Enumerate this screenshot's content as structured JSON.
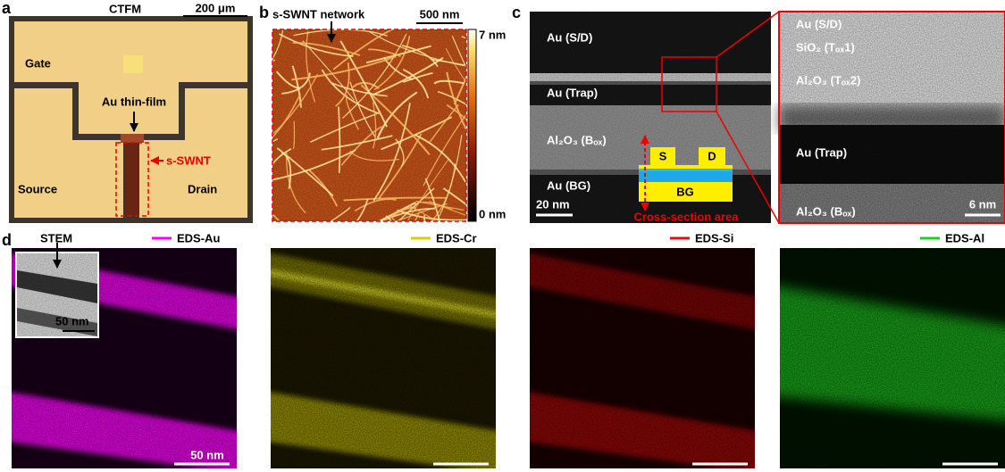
{
  "panels": {
    "a": {
      "label": "a",
      "title": "CTFM",
      "scale_bar": "200 μm",
      "gate": "Gate",
      "film": "Au thin-film",
      "channel": "s-SWNT",
      "source": "Source",
      "drain": "Drain"
    },
    "b": {
      "label": "b",
      "title": "s-SWNT network",
      "scale_bar": "500 nm",
      "colorbar_max": "7 nm",
      "colorbar_min": "0 nm"
    },
    "c": {
      "label": "c",
      "layers": [
        "Au (S/D)",
        "Au (Trap)",
        "Al₂O₃ (Bₒₓ)",
        "Au (BG)"
      ],
      "scale_bar": "20 nm",
      "schematic": {
        "source": "S",
        "drain": "D",
        "gate": "BG",
        "caption": "Cross-section area"
      },
      "zoom_layers": [
        "Au (S/D)",
        "SiO₂ (Tₒₓ1)",
        "Al₂O₃ (Tₒₓ2)",
        "Au (Trap)",
        "Al₂O₃ (Bₒₓ)"
      ],
      "zoom_scale_bar": "6 nm"
    },
    "d": {
      "label": "d",
      "inset_title": "STEM",
      "inset_scale_bar": "50 nm",
      "scale_bar": "50 nm",
      "maps": [
        "EDS-Au",
        "EDS-Cr",
        "EDS-Si",
        "EDS-Al"
      ]
    }
  }
}
